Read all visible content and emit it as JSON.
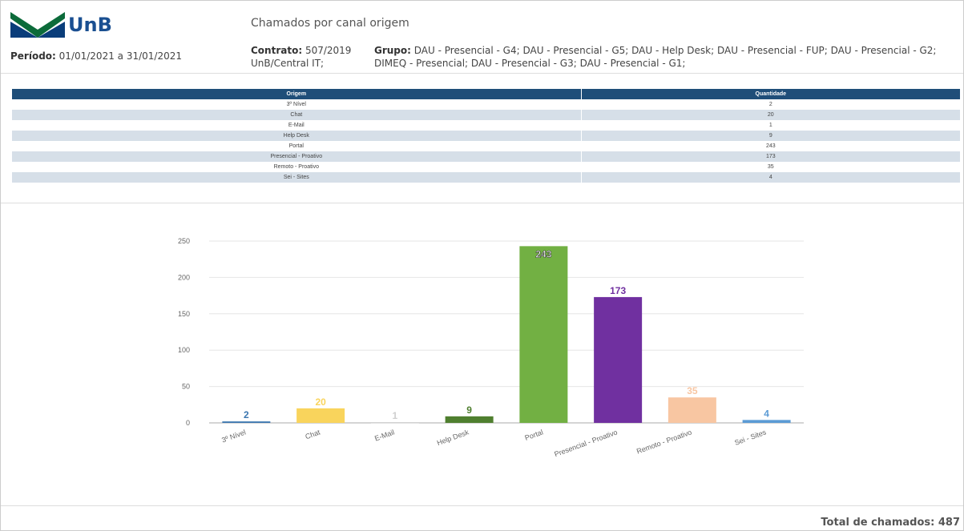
{
  "header": {
    "logo": "UnB",
    "title": "Chamados por canal origem",
    "periodo_label": "Período:",
    "periodo": "01/01/2021 a 31/01/2021",
    "contrato_label": "Contrato:",
    "contrato": "507/2019 UnB/Central IT;",
    "grupo_label": "Grupo:",
    "grupo": "DAU - Presencial - G4; DAU - Presencial - G5; DAU - Help Desk; DAU - Presencial - FUP; DAU - Presencial - G2; DIMEQ - Presencial; DAU - Presencial - G3; DAU - Presencial - G1;"
  },
  "table": {
    "columns": [
      "Origem",
      "Quantidade"
    ],
    "rows": [
      [
        "3º Nível",
        2
      ],
      [
        "Chat",
        20
      ],
      [
        "E-Mail",
        1
      ],
      [
        "Help Desk",
        9
      ],
      [
        "Portal",
        243
      ],
      [
        "Presencial - Proativo",
        173
      ],
      [
        "Remoto - Proativo",
        35
      ],
      [
        "Sei - Sites",
        4
      ]
    ]
  },
  "chart_data": {
    "type": "bar",
    "categories": [
      "3º Nível",
      "Chat",
      "E-Mail",
      "Help Desk",
      "Portal",
      "Presencial - Proativo",
      "Remoto - Proativo",
      "Sei - Sites"
    ],
    "values": [
      2,
      20,
      1,
      9,
      243,
      173,
      35,
      4
    ],
    "colors": [
      "#3b76b0",
      "#f9d45c",
      "#cfcfcf",
      "#4f7f2f",
      "#72b043",
      "#7030a0",
      "#f8c6a2",
      "#5b9bd5"
    ],
    "ylim": [
      0,
      250
    ],
    "yticks": [
      0,
      50,
      100,
      150,
      200,
      250
    ],
    "grid": true
  },
  "footer": {
    "total_label": "Total de chamados:",
    "total": 487
  }
}
